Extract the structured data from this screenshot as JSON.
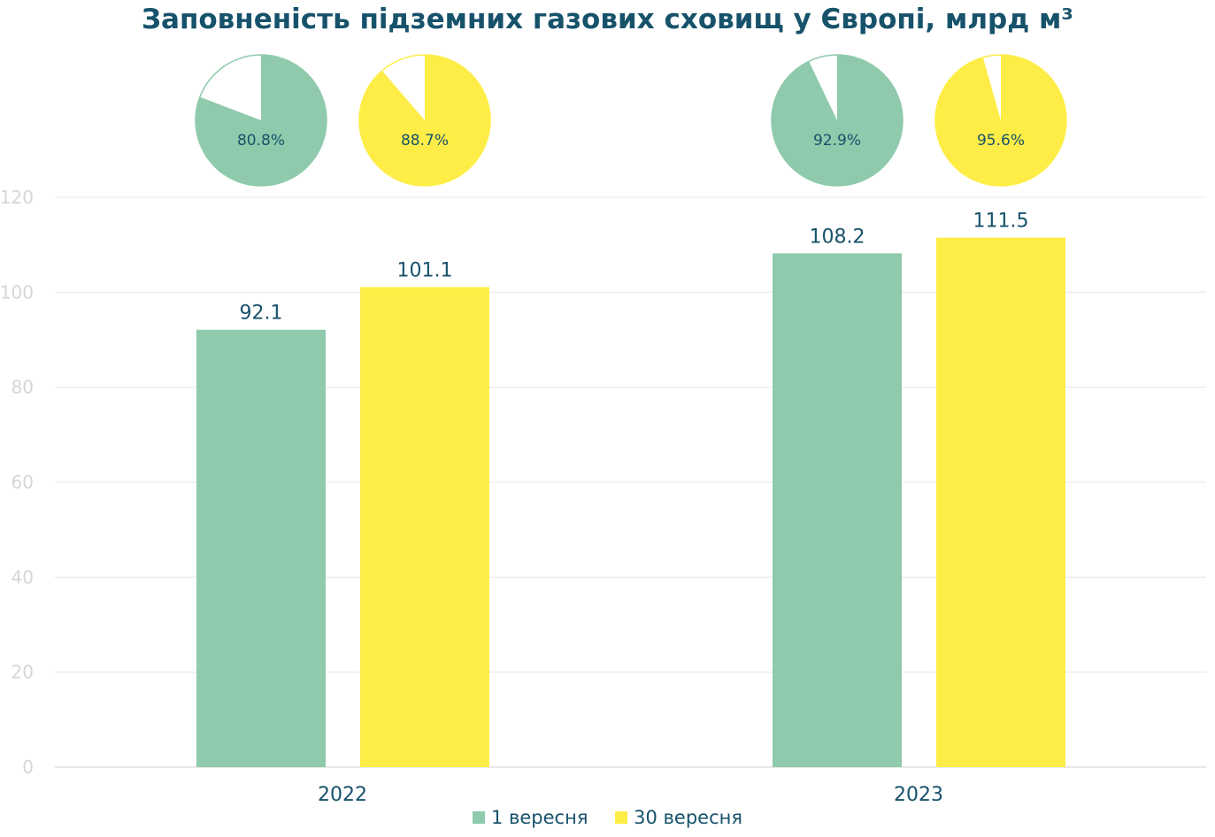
{
  "chart_data": {
    "type": "bar",
    "title": "Заповненість підземних газових сховищ у Європі, млрд м³",
    "xlabel": "",
    "ylabel": "",
    "categories": [
      "2022",
      "2023"
    ],
    "series": [
      {
        "name": "1 вересня",
        "values": [
          92.1,
          108.2
        ],
        "labels": [
          "92.1",
          "108.2"
        ],
        "color": "#8ecaab"
      },
      {
        "name": "30 вересня",
        "values": [
          101.1,
          111.5
        ],
        "labels": [
          "101.1",
          "111.5"
        ],
        "color": "#ffed47"
      }
    ],
    "ylim": [
      0,
      120
    ],
    "yticks": [
      "0",
      "20",
      "40",
      "60",
      "80",
      "100",
      "120"
    ],
    "grid": true,
    "legend": "bottom",
    "fill_percent": {
      "type": "pie",
      "series": [
        {
          "name": "1 вересня",
          "values": [
            80.8,
            92.9
          ],
          "labels": [
            "80.8%",
            "92.9%"
          ],
          "color": "#8ecaab"
        },
        {
          "name": "30 вересня",
          "values": [
            88.7,
            95.6
          ],
          "labels": [
            "88.7%",
            "95.6%"
          ],
          "color": "#ffed47"
        }
      ]
    }
  }
}
